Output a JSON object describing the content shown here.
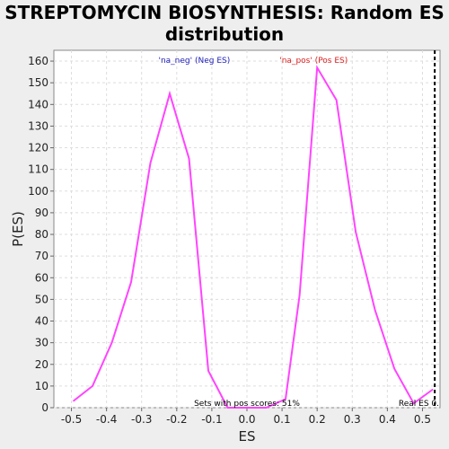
{
  "chart_data": {
    "type": "line",
    "title": "STREPTOMYCIN BIOSYNTHESIS: Random ES distribution",
    "xlabel": "ES",
    "ylabel": "P(ES)",
    "xlim": [
      -0.55,
      0.55
    ],
    "ylim": [
      0,
      165
    ],
    "grid": true,
    "x_ticks": [
      "-0.5",
      "-0.4",
      "-0.3",
      "-0.2",
      "-0.1",
      "0.0",
      "0.1",
      "0.2",
      "0.3",
      "0.4",
      "0.5"
    ],
    "y_ticks": [
      "0",
      "10",
      "20",
      "30",
      "40",
      "50",
      "60",
      "70",
      "80",
      "90",
      "100",
      "110",
      "120",
      "130",
      "140",
      "150",
      "160"
    ],
    "series": [
      {
        "color": "#ff44ff",
        "points": [
          [
            -0.495,
            3
          ],
          [
            -0.44,
            10
          ],
          [
            -0.385,
            30
          ],
          [
            -0.33,
            58
          ],
          [
            -0.275,
            113
          ],
          [
            -0.22,
            145
          ],
          [
            -0.165,
            115
          ],
          [
            -0.11,
            17
          ],
          [
            -0.055,
            0
          ],
          [
            0.0,
            0
          ],
          [
            0.055,
            0
          ],
          [
            0.11,
            4
          ],
          [
            0.15,
            52
          ],
          [
            0.2,
            157
          ],
          [
            0.255,
            142
          ],
          [
            0.31,
            81
          ],
          [
            0.365,
            45
          ],
          [
            0.42,
            18
          ],
          [
            0.475,
            2
          ],
          [
            0.53,
            8.5
          ]
        ]
      }
    ],
    "annotations": {
      "neg_label": "'na_neg' (Neg ES)",
      "neg_color": "#2222bb",
      "pos_label": "'na_pos' (Pos ES)",
      "pos_color": "#dd2222",
      "pos_scores": "Sets with pos scores: 51%",
      "real_es_label": "Real ES 0.",
      "real_es": 0.535
    }
  }
}
